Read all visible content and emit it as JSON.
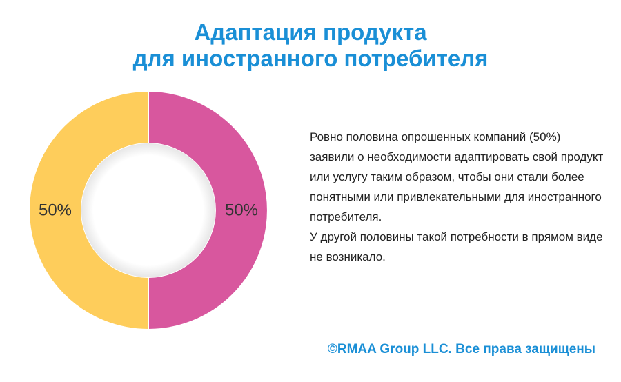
{
  "title": {
    "line1": "Адаптация продукта",
    "line2": "для иностранного потребителя"
  },
  "chart_data": {
    "type": "pie",
    "donut": true,
    "title": "Адаптация продукта для иностранного потребителя",
    "series": [
      {
        "values": [
          50,
          50
        ],
        "labels": [
          "50%",
          "50%"
        ],
        "colors": [
          "#d8579e",
          "#fecd5b"
        ]
      }
    ],
    "start_angle_deg": 0,
    "direction": "clockwise"
  },
  "description": {
    "paragraph1": "Ровно половина опрошенных компаний (50%) заявили о необходимости адаптировать свой продукт или услугу таким образом, чтобы они стали более понятными или привлекательными для иностранного потребителя.",
    "paragraph2": "У другой половины такой потребности в прямом виде не возникало."
  },
  "footer": {
    "copyright": "©RMAA Group LLC. Все права защищены"
  },
  "colors": {
    "accent": "#1a8fd6",
    "text": "#222222",
    "slice_pink": "#d8579e",
    "slice_yellow": "#fecd5b"
  }
}
